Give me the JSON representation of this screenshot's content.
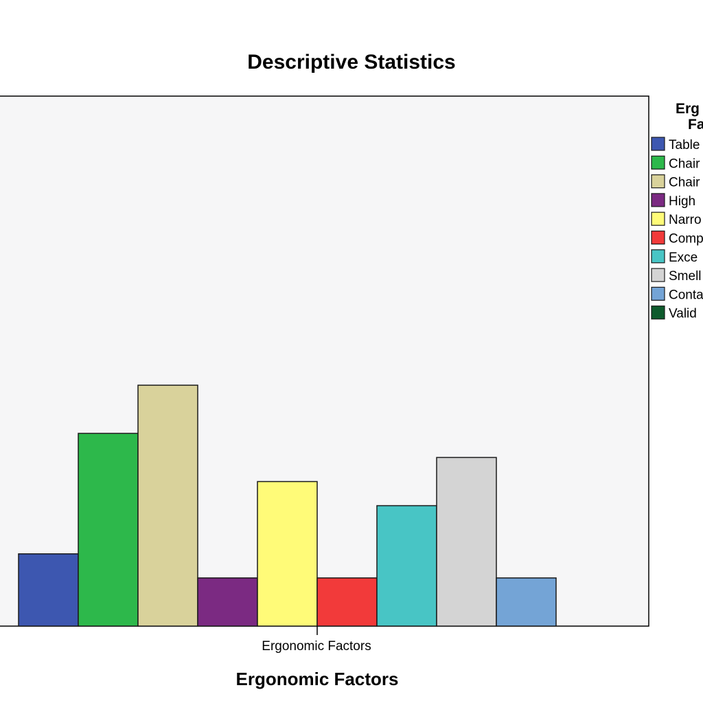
{
  "chart_data": {
    "type": "bar",
    "title": "Descriptive Statistics",
    "xlabel": "Ergonomic Factors",
    "ylabel": "",
    "categories": [
      "Ergonomic Factors"
    ],
    "ylim": [
      0,
      22
    ],
    "grid": false,
    "legend_position": "right",
    "legend_title": [
      "Erg",
      "Fa"
    ],
    "series": [
      {
        "name": "Table",
        "values": [
          3
        ],
        "color": "#3d57b0"
      },
      {
        "name": "Chair",
        "values": [
          8
        ],
        "color": "#2db84b"
      },
      {
        "name": "Chair",
        "values": [
          10
        ],
        "color": "#d9d29b"
      },
      {
        "name": "High",
        "values": [
          2
        ],
        "color": "#7b2a82"
      },
      {
        "name": "Narro",
        "values": [
          6
        ],
        "color": "#fffb78"
      },
      {
        "name": "Comp",
        "values": [
          2
        ],
        "color": "#f23a3a"
      },
      {
        "name": "Exce",
        "values": [
          5
        ],
        "color": "#48c5c5"
      },
      {
        "name": "Smell",
        "values": [
          7
        ],
        "color": "#d4d4d4"
      },
      {
        "name": "Conta",
        "values": [
          2
        ],
        "color": "#74a4d6"
      },
      {
        "name": "Valid",
        "values": [
          0
        ],
        "color": "#0d5a2c"
      }
    ],
    "colors": {
      "plot_background": "#f6f6f7",
      "axis": "#000000",
      "bar_outline": "#1a1a1a"
    }
  }
}
